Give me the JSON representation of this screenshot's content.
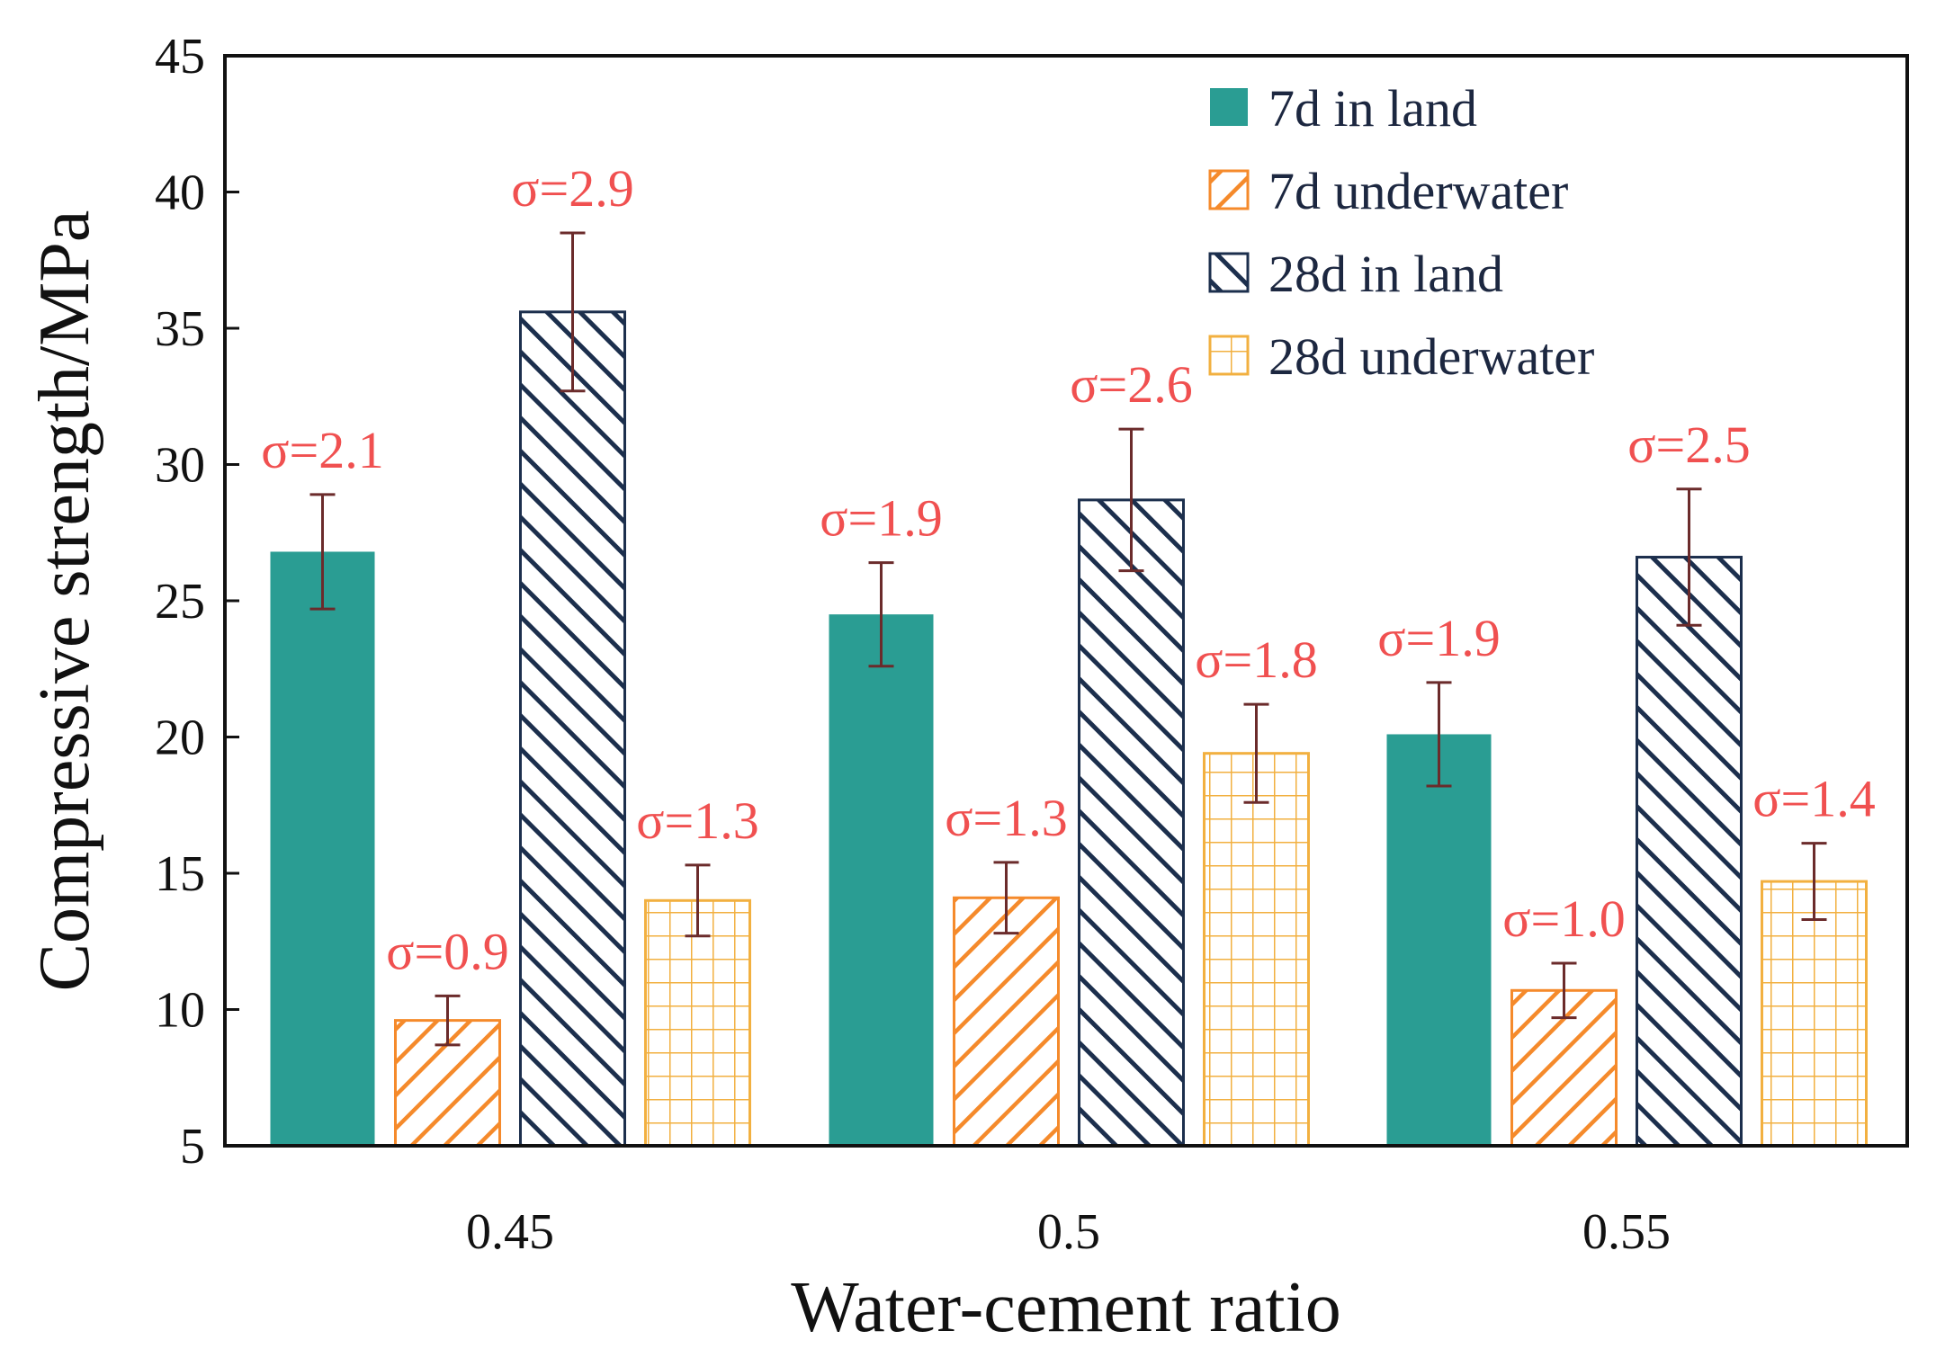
{
  "chart_data": {
    "type": "bar",
    "title": "",
    "xlabel": "Water-cement ratio",
    "ylabel": "Compressive strength/MPa",
    "ylim": [
      5,
      45
    ],
    "yticks": [
      5,
      10,
      15,
      20,
      25,
      30,
      35,
      40,
      45
    ],
    "ytick_labels": [
      "5",
      "10",
      "15",
      "20",
      "25",
      "30",
      "35",
      "40",
      "45"
    ],
    "categories": [
      "0.45",
      "0.5",
      "0.55"
    ],
    "grid": false,
    "legend_position": "top-right",
    "series": [
      {
        "name": "7d in land",
        "pattern": "solid",
        "color": "#2a9d93",
        "values": [
          26.8,
          24.5,
          20.1
        ],
        "errors": [
          2.1,
          1.9,
          1.9
        ],
        "labels": [
          "σ=2.1",
          "σ=1.9",
          "σ=1.9"
        ]
      },
      {
        "name": "7d underwater",
        "pattern": "diagonal",
        "color": "#f58a2b",
        "values": [
          9.6,
          14.1,
          10.7
        ],
        "errors": [
          0.9,
          1.3,
          1.0
        ],
        "labels": [
          "σ=0.9",
          "σ=1.3",
          "σ=1.0"
        ]
      },
      {
        "name": "28d in land",
        "pattern": "diagonal-reverse",
        "color": "#1c2f4d",
        "values": [
          35.6,
          28.7,
          26.6
        ],
        "errors": [
          2.9,
          2.6,
          2.5
        ],
        "labels": [
          "σ=2.9",
          "σ=2.6",
          "σ=2.5"
        ]
      },
      {
        "name": "28d underwater",
        "pattern": "grid",
        "color": "#f2b040",
        "values": [
          14.0,
          19.4,
          14.7
        ],
        "errors": [
          1.3,
          1.8,
          1.4
        ],
        "labels": [
          "σ=1.3",
          "σ=1.8",
          "σ=1.4"
        ]
      }
    ]
  }
}
